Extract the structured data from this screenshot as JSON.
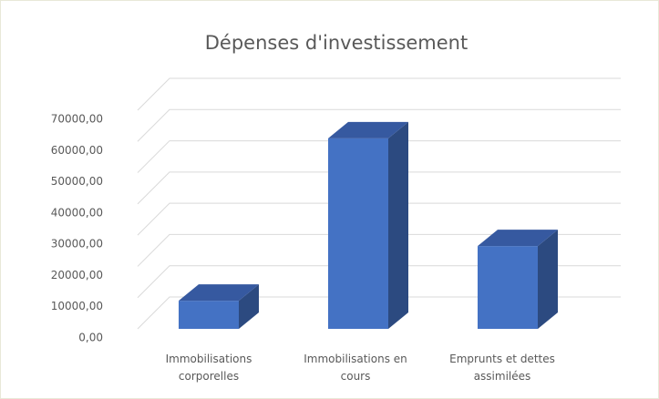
{
  "chart_data": {
    "type": "bar3d",
    "title": "Dépenses d'investissement",
    "categories": [
      "Immobilisations corporelles",
      "Immobilisations en cours",
      "Emprunts et dettes assimilées"
    ],
    "values": [
      9000,
      61000,
      26500
    ],
    "color": "#4472c4",
    "ylim": [
      0,
      70000
    ],
    "yticks": [
      {
        "value": 0,
        "label": "0,00"
      },
      {
        "value": 10000,
        "label": "10000,00"
      },
      {
        "value": 20000,
        "label": "20000,00"
      },
      {
        "value": 30000,
        "label": "30000,00"
      },
      {
        "value": 40000,
        "label": "40000,00"
      },
      {
        "value": 50000,
        "label": "50000,00"
      },
      {
        "value": 60000,
        "label": "60000,00"
      },
      {
        "value": 70000,
        "label": "70000,00"
      }
    ],
    "grid": true
  }
}
